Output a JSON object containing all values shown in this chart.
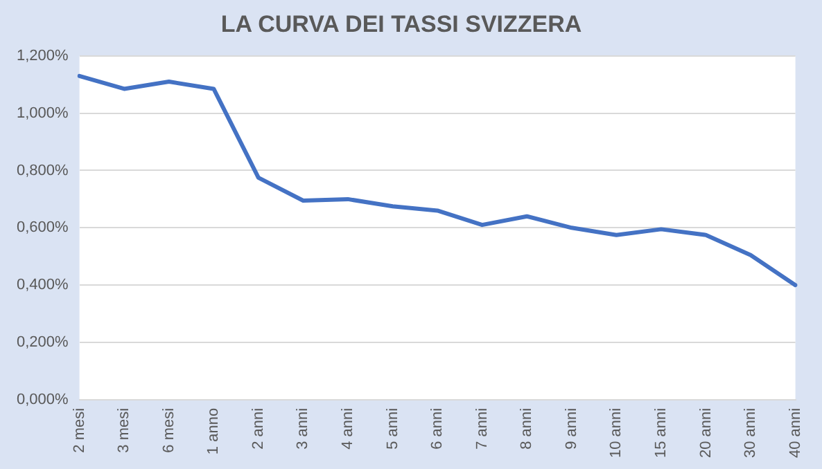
{
  "chart_data": {
    "type": "line",
    "title": "LA CURVA DEI TASSI SVIZZERA",
    "categories": [
      "2 mesi",
      "3 mesi",
      "6 mesi",
      "1 anno",
      "2 anni",
      "3 anni",
      "4 anni",
      "5 anni",
      "6 anni",
      "7 anni",
      "8 anni",
      "9 anni",
      "10 anni",
      "15 anni",
      "20 anni",
      "30 anni",
      "40 anni"
    ],
    "series": [
      {
        "color": "#4472c4",
        "values": [
          1.13,
          1.085,
          1.11,
          1.085,
          0.775,
          0.695,
          0.7,
          0.675,
          0.66,
          0.61,
          0.64,
          0.6,
          0.575,
          0.595,
          0.575,
          0.505,
          0.4
        ]
      }
    ],
    "ylim": [
      0,
      1.2
    ],
    "yticks": [
      {
        "value": 0,
        "label": "0,000%"
      },
      {
        "value": 0.2,
        "label": "0,200%"
      },
      {
        "value": 0.4,
        "label": "0,400%"
      },
      {
        "value": 0.6,
        "label": "0,600%"
      },
      {
        "value": 0.8,
        "label": "0,800%"
      },
      {
        "value": 1.0,
        "label": "1,000%"
      },
      {
        "value": 1.2,
        "label": "1,200%"
      }
    ],
    "grid": "y",
    "legend": false,
    "marker": "none",
    "line_style": "solid"
  }
}
